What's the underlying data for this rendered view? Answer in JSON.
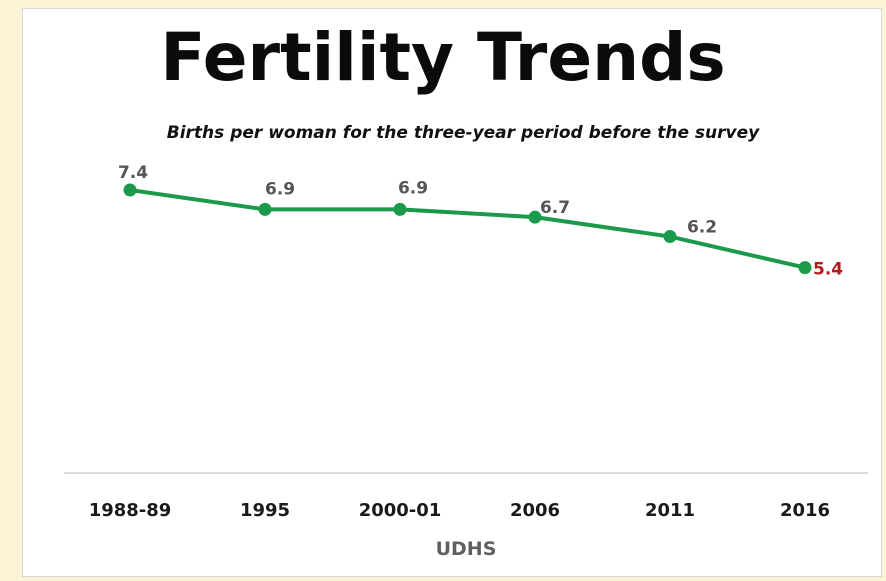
{
  "chart_data": {
    "type": "line",
    "title": "Fertility Trends",
    "subtitle": "Births per woman for the three-year period before the survey",
    "xlabel": "UDHS",
    "ylabel": "",
    "categories": [
      "1988-89",
      "1995",
      "2000-01",
      "2006",
      "2011",
      "2016"
    ],
    "series": [
      {
        "values": [
          7.4,
          6.9,
          6.9,
          6.7,
          6.2,
          5.4
        ],
        "color": "#1a9a4a"
      }
    ],
    "data_labels": [
      "7.4",
      "6.9",
      "6.9",
      "6.7",
      "6.2",
      "5.4"
    ],
    "highlight_color": "#b01c1c",
    "label_color": "#555555",
    "grid": false,
    "legend": "none"
  }
}
